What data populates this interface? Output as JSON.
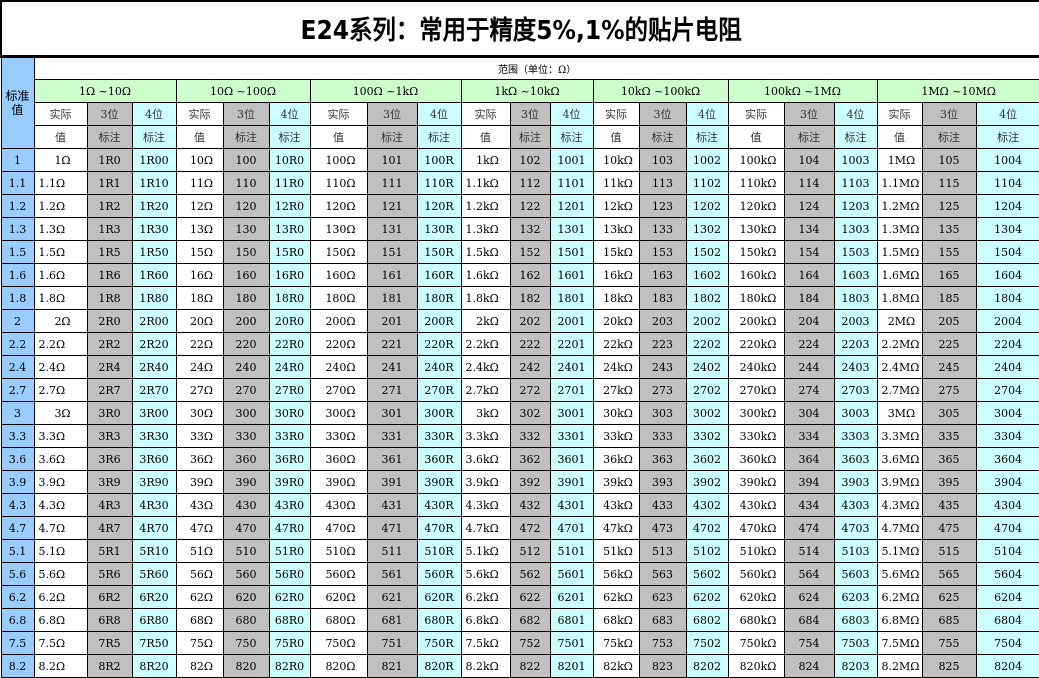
{
  "title": "E24系列：常用于精度5%,1%的贴片电阻",
  "std_header": "标准值",
  "range_header": "范围（单位：Ω）",
  "groups": [
    "1Ω ~10Ω",
    "10Ω ~100Ω",
    "100Ω ~1kΩ",
    "1kΩ ~10kΩ",
    "10kΩ ~100kΩ",
    "100kΩ ~1MΩ",
    "1MΩ ~10MΩ"
  ],
  "sub_header_1": [
    "实际",
    "3位",
    "4位"
  ],
  "sub_header_2": [
    "值",
    "标注",
    "标注"
  ],
  "colors": {
    "standard_column": "#99ccff",
    "group_header": "#ccffcc",
    "three_digit": "#c0c0c0",
    "four_digit": "#ccffff"
  },
  "rows": [
    [
      "1",
      "1Ω",
      "1R0",
      "1R00",
      "10Ω",
      "100",
      "10R0",
      "100Ω",
      "101",
      "100R",
      "1kΩ",
      "102",
      "1001",
      "10kΩ",
      "103",
      "1002",
      "100kΩ",
      "104",
      "1003",
      "1MΩ",
      "105",
      "1004"
    ],
    [
      "1.1",
      "1.1Ω",
      "1R1",
      "1R10",
      "11Ω",
      "110",
      "11R0",
      "110Ω",
      "111",
      "110R",
      "1.1kΩ",
      "112",
      "1101",
      "11kΩ",
      "113",
      "1102",
      "110kΩ",
      "114",
      "1103",
      "1.1MΩ",
      "115",
      "1104"
    ],
    [
      "1.2",
      "1.2Ω",
      "1R2",
      "1R20",
      "12Ω",
      "120",
      "12R0",
      "120Ω",
      "121",
      "120R",
      "1.2kΩ",
      "122",
      "1201",
      "12kΩ",
      "123",
      "1202",
      "120kΩ",
      "124",
      "1203",
      "1.2MΩ",
      "125",
      "1204"
    ],
    [
      "1.3",
      "1.3Ω",
      "1R3",
      "1R30",
      "13Ω",
      "130",
      "13R0",
      "130Ω",
      "131",
      "130R",
      "1.3kΩ",
      "132",
      "1301",
      "13kΩ",
      "133",
      "1302",
      "130kΩ",
      "134",
      "1303",
      "1.3MΩ",
      "135",
      "1304"
    ],
    [
      "1.5",
      "1.5Ω",
      "1R5",
      "1R50",
      "15Ω",
      "150",
      "15R0",
      "150Ω",
      "151",
      "150R",
      "1.5kΩ",
      "152",
      "1501",
      "15kΩ",
      "153",
      "1502",
      "150kΩ",
      "154",
      "1503",
      "1.5MΩ",
      "155",
      "1504"
    ],
    [
      "1.6",
      "1.6Ω",
      "1R6",
      "1R60",
      "16Ω",
      "160",
      "16R0",
      "160Ω",
      "161",
      "160R",
      "1.6kΩ",
      "162",
      "1601",
      "16kΩ",
      "163",
      "1602",
      "160kΩ",
      "164",
      "1603",
      "1.6MΩ",
      "165",
      "1604"
    ],
    [
      "1.8",
      "1.8Ω",
      "1R8",
      "1R80",
      "18Ω",
      "180",
      "18R0",
      "180Ω",
      "181",
      "180R",
      "1.8kΩ",
      "182",
      "1801",
      "18kΩ",
      "183",
      "1802",
      "180kΩ",
      "184",
      "1803",
      "1.8MΩ",
      "185",
      "1804"
    ],
    [
      "2",
      "2Ω",
      "2R0",
      "2R00",
      "20Ω",
      "200",
      "20R0",
      "200Ω",
      "201",
      "200R",
      "2kΩ",
      "202",
      "2001",
      "20kΩ",
      "203",
      "2002",
      "200kΩ",
      "204",
      "2003",
      "2MΩ",
      "205",
      "2004"
    ],
    [
      "2.2",
      "2.2Ω",
      "2R2",
      "2R20",
      "22Ω",
      "220",
      "22R0",
      "220Ω",
      "221",
      "220R",
      "2.2kΩ",
      "222",
      "2201",
      "22kΩ",
      "223",
      "2202",
      "220kΩ",
      "224",
      "2203",
      "2.2MΩ",
      "225",
      "2204"
    ],
    [
      "2.4",
      "2.4Ω",
      "2R4",
      "2R40",
      "24Ω",
      "240",
      "24R0",
      "240Ω",
      "241",
      "240R",
      "2.4kΩ",
      "242",
      "2401",
      "24kΩ",
      "243",
      "2402",
      "240kΩ",
      "244",
      "2403",
      "2.4MΩ",
      "245",
      "2404"
    ],
    [
      "2.7",
      "2.7Ω",
      "2R7",
      "2R70",
      "27Ω",
      "270",
      "27R0",
      "270Ω",
      "271",
      "270R",
      "2.7kΩ",
      "272",
      "2701",
      "27kΩ",
      "273",
      "2702",
      "270kΩ",
      "274",
      "2703",
      "2.7MΩ",
      "275",
      "2704"
    ],
    [
      "3",
      "3Ω",
      "3R0",
      "3R00",
      "30Ω",
      "300",
      "30R0",
      "300Ω",
      "301",
      "300R",
      "3kΩ",
      "302",
      "3001",
      "30kΩ",
      "303",
      "3002",
      "300kΩ",
      "304",
      "3003",
      "3MΩ",
      "305",
      "3004"
    ],
    [
      "3.3",
      "3.3Ω",
      "3R3",
      "3R30",
      "33Ω",
      "330",
      "33R0",
      "330Ω",
      "331",
      "330R",
      "3.3kΩ",
      "332",
      "3301",
      "33kΩ",
      "333",
      "3302",
      "330kΩ",
      "334",
      "3303",
      "3.3MΩ",
      "335",
      "3304"
    ],
    [
      "3.6",
      "3.6Ω",
      "3R6",
      "3R60",
      "36Ω",
      "360",
      "36R0",
      "360Ω",
      "361",
      "360R",
      "3.6kΩ",
      "362",
      "3601",
      "36kΩ",
      "363",
      "3602",
      "360kΩ",
      "364",
      "3603",
      "3.6MΩ",
      "365",
      "3604"
    ],
    [
      "3.9",
      "3.9Ω",
      "3R9",
      "3R90",
      "39Ω",
      "390",
      "39R0",
      "390Ω",
      "391",
      "390R",
      "3.9kΩ",
      "392",
      "3901",
      "39kΩ",
      "393",
      "3902",
      "390kΩ",
      "394",
      "3903",
      "3.9MΩ",
      "395",
      "3904"
    ],
    [
      "4.3",
      "4.3Ω",
      "4R3",
      "4R30",
      "43Ω",
      "430",
      "43R0",
      "430Ω",
      "431",
      "430R",
      "4.3kΩ",
      "432",
      "4301",
      "43kΩ",
      "433",
      "4302",
      "430kΩ",
      "434",
      "4303",
      "4.3MΩ",
      "435",
      "4304"
    ],
    [
      "4.7",
      "4.7Ω",
      "4R7",
      "4R70",
      "47Ω",
      "470",
      "47R0",
      "470Ω",
      "471",
      "470R",
      "4.7kΩ",
      "472",
      "4701",
      "47kΩ",
      "473",
      "4702",
      "470kΩ",
      "474",
      "4703",
      "4.7MΩ",
      "475",
      "4704"
    ],
    [
      "5.1",
      "5.1Ω",
      "5R1",
      "5R10",
      "51Ω",
      "510",
      "51R0",
      "510Ω",
      "511",
      "510R",
      "5.1kΩ",
      "512",
      "5101",
      "51kΩ",
      "513",
      "5102",
      "510kΩ",
      "514",
      "5103",
      "5.1MΩ",
      "515",
      "5104"
    ],
    [
      "5.6",
      "5.6Ω",
      "5R6",
      "5R60",
      "56Ω",
      "560",
      "56R0",
      "560Ω",
      "561",
      "560R",
      "5.6kΩ",
      "562",
      "5601",
      "56kΩ",
      "563",
      "5602",
      "560kΩ",
      "564",
      "5603",
      "5.6MΩ",
      "565",
      "5604"
    ],
    [
      "6.2",
      "6.2Ω",
      "6R2",
      "6R20",
      "62Ω",
      "620",
      "62R0",
      "620Ω",
      "621",
      "620R",
      "6.2kΩ",
      "622",
      "6201",
      "62kΩ",
      "623",
      "6202",
      "620kΩ",
      "624",
      "6203",
      "6.2MΩ",
      "625",
      "6204"
    ],
    [
      "6.8",
      "6.8Ω",
      "6R8",
      "6R80",
      "68Ω",
      "680",
      "68R0",
      "680Ω",
      "681",
      "680R",
      "6.8kΩ",
      "682",
      "6801",
      "68kΩ",
      "683",
      "6802",
      "680kΩ",
      "684",
      "6803",
      "6.8MΩ",
      "685",
      "6804"
    ],
    [
      "7.5",
      "7.5Ω",
      "7R5",
      "7R50",
      "75Ω",
      "750",
      "75R0",
      "750Ω",
      "751",
      "750R",
      "7.5kΩ",
      "752",
      "7501",
      "75kΩ",
      "753",
      "7502",
      "750kΩ",
      "754",
      "7503",
      "7.5MΩ",
      "755",
      "7504"
    ],
    [
      "8.2",
      "8.2Ω",
      "8R2",
      "8R20",
      "82Ω",
      "820",
      "82R0",
      "820Ω",
      "821",
      "820R",
      "8.2kΩ",
      "822",
      "8201",
      "82kΩ",
      "823",
      "8202",
      "820kΩ",
      "824",
      "8203",
      "8.2MΩ",
      "825",
      "8204"
    ]
  ]
}
